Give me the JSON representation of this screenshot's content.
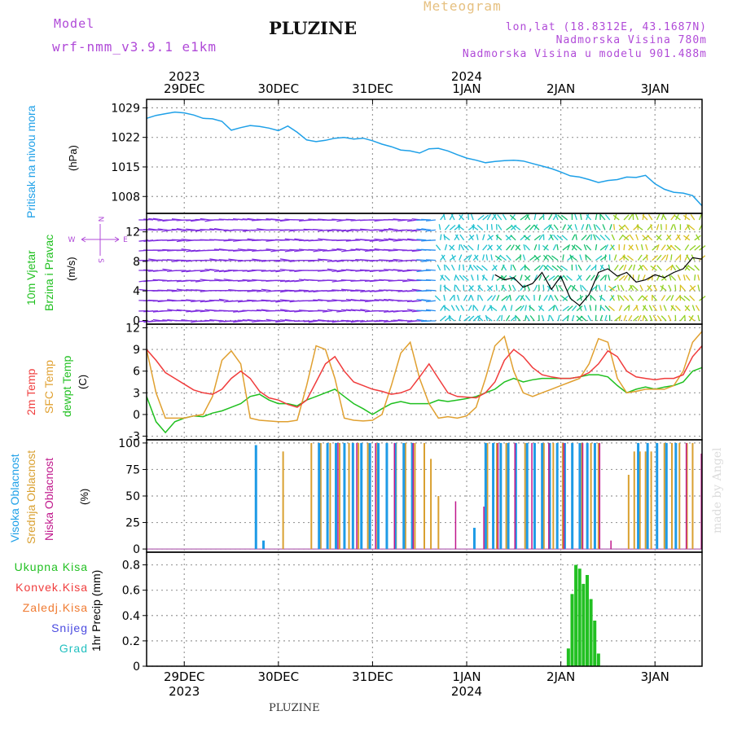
{
  "header": {
    "model_label": "Model",
    "model_value": "wrf-nmm_v3.9.1 e1km",
    "title": "PLUZINE",
    "meteogram": "Meteogram",
    "lonlat": "lon,lat (18.8312E, 43.1687N)",
    "elevation": "Nadmorska Visina 780m",
    "model_elevation": "Nadmorska Visina u modelu 901.488m"
  },
  "footer": {
    "location": "PLUZINE",
    "credit": "made by Angel"
  },
  "colors": {
    "pressure": "#1ea0e8",
    "temp2m": "#f03c3c",
    "sfc_temp": "#e0a030",
    "dewpoint": "#20c020",
    "high_cloud": "#1e9be6",
    "mid_cloud": "#d9a030",
    "low_cloud": "#c0188c",
    "precip": "#22c022",
    "purple_label": "#b04ad8",
    "grid": "#9a9a9a"
  },
  "time_axis": {
    "start_day": 28.6,
    "end_day": 34.5,
    "days": [
      {
        "day": 29,
        "label": "29DEC",
        "year": "2023"
      },
      {
        "day": 30,
        "label": "30DEC",
        "year": ""
      },
      {
        "day": 31,
        "label": "31DEC",
        "year": ""
      },
      {
        "day": 32,
        "label": "1JAN",
        "year": "2024"
      },
      {
        "day": 33,
        "label": "2JAN",
        "year": ""
      },
      {
        "day": 34,
        "label": "3JAN",
        "year": ""
      }
    ]
  },
  "chart_data": [
    {
      "type": "line",
      "panel": "pressure",
      "ylabel_text": "Pritisak na nivou mora",
      "unit": "(hPa)",
      "ylim": [
        1004,
        1031
      ],
      "yticks": [
        1008,
        1015,
        1022,
        1029
      ],
      "series": [
        {
          "name": "Pritisak na nivou mora",
          "x": [
            28.6,
            28.7,
            28.8,
            28.9,
            29.0,
            29.1,
            29.2,
            29.3,
            29.4,
            29.5,
            29.6,
            29.7,
            29.8,
            29.9,
            30.0,
            30.1,
            30.2,
            30.3,
            30.4,
            30.5,
            30.6,
            30.7,
            30.8,
            30.9,
            31.0,
            31.1,
            31.2,
            31.3,
            31.4,
            31.5,
            31.6,
            31.7,
            31.8,
            31.9,
            32.0,
            32.1,
            32.2,
            32.3,
            32.4,
            32.5,
            32.6,
            32.7,
            32.8,
            32.9,
            33.0,
            33.1,
            33.2,
            33.3,
            33.4,
            33.5,
            33.6,
            33.7,
            33.8,
            33.9,
            34.0,
            34.1,
            34.2,
            34.3,
            34.4,
            34.5
          ],
          "values": [
            1026.5,
            1027.2,
            1027.6,
            1028.0,
            1027.8,
            1027.3,
            1026.5,
            1026.4,
            1025.8,
            1023.7,
            1024.3,
            1024.8,
            1024.6,
            1024.2,
            1023.6,
            1024.7,
            1023.2,
            1021.4,
            1021.0,
            1021.3,
            1021.8,
            1022.0,
            1021.6,
            1021.8,
            1021.2,
            1020.4,
            1019.8,
            1019.0,
            1018.8,
            1018.3,
            1019.3,
            1019.4,
            1018.8,
            1017.9,
            1017.1,
            1016.6,
            1016.0,
            1016.3,
            1016.5,
            1016.6,
            1016.4,
            1015.8,
            1015.2,
            1014.6,
            1013.8,
            1012.9,
            1012.6,
            1012.0,
            1011.3,
            1011.8,
            1012.0,
            1012.6,
            1012.5,
            1013.0,
            1011.0,
            1009.7,
            1009.0,
            1008.8,
            1008.2,
            1005.8
          ]
        }
      ]
    },
    {
      "type": "line",
      "panel": "wind",
      "ylabel_text": [
        "10m Vjetar",
        "Brzina i Pravac"
      ],
      "unit": "(m/s)",
      "compass": {
        "n": "N",
        "s": "S",
        "e": "E",
        "w": "W"
      },
      "ylim": [
        -0.5,
        14.5
      ],
      "yticks": [
        0,
        4,
        8,
        12
      ],
      "series": [
        {
          "name": "10m Vjetar",
          "x": [
            32.3,
            32.4,
            32.5,
            32.6,
            32.7,
            32.8,
            32.9,
            33.0,
            33.1,
            33.2,
            33.3,
            33.4,
            33.5,
            33.6,
            33.7,
            33.8,
            33.9,
            34.0,
            34.1,
            34.2,
            34.3,
            34.4,
            34.5
          ],
          "values": [
            6.2,
            5.5,
            5.8,
            4.5,
            5.0,
            6.5,
            4.2,
            6.0,
            3.0,
            2.0,
            3.5,
            6.5,
            7.0,
            6.0,
            6.5,
            5.2,
            5.5,
            6.2,
            5.8,
            6.5,
            7.0,
            8.5,
            8.3
          ]
        }
      ]
    },
    {
      "type": "line",
      "panel": "temperature",
      "ylabel_text": [
        "2m Temp",
        "SFC Temp",
        "dewpt Temp"
      ],
      "unit": "(C)",
      "ylim": [
        -3.5,
        12.5
      ],
      "yticks": [
        -3,
        0,
        3,
        6,
        9,
        12
      ],
      "series": [
        {
          "name": "2m Temp",
          "x": [
            28.6,
            28.7,
            28.8,
            28.9,
            29.0,
            29.1,
            29.2,
            29.3,
            29.4,
            29.5,
            29.6,
            29.7,
            29.8,
            29.9,
            30.0,
            30.1,
            30.2,
            30.3,
            30.4,
            30.5,
            30.6,
            30.7,
            30.8,
            30.9,
            31.0,
            31.1,
            31.2,
            31.3,
            31.4,
            31.5,
            31.6,
            31.7,
            31.8,
            31.9,
            32.0,
            32.1,
            32.2,
            32.3,
            32.4,
            32.5,
            32.6,
            32.7,
            32.8,
            32.9,
            33.0,
            33.1,
            33.2,
            33.3,
            33.4,
            33.5,
            33.6,
            33.7,
            33.8,
            33.9,
            34.0,
            34.1,
            34.2,
            34.3,
            34.4,
            34.5
          ],
          "values": [
            9.0,
            7.5,
            5.8,
            5.0,
            4.2,
            3.4,
            3.0,
            2.8,
            3.5,
            5.0,
            6.0,
            5.0,
            3.2,
            2.3,
            2.0,
            1.4,
            1.0,
            2.0,
            4.5,
            7.0,
            8.0,
            6.0,
            4.5,
            4.0,
            3.5,
            3.2,
            2.8,
            3.0,
            3.5,
            5.2,
            7.0,
            5.0,
            3.0,
            2.5,
            2.4,
            2.3,
            3.0,
            4.5,
            7.5,
            9.0,
            8.0,
            6.5,
            5.5,
            5.2,
            5.0,
            5.0,
            5.2,
            5.8,
            7.0,
            8.8,
            8.0,
            6.0,
            5.2,
            5.0,
            4.8,
            5.0,
            5.0,
            5.5,
            8.0,
            9.5
          ]
        },
        {
          "name": "SFC Temp",
          "x": [
            28.6,
            28.7,
            28.8,
            28.9,
            29.0,
            29.1,
            29.2,
            29.3,
            29.4,
            29.5,
            29.6,
            29.7,
            29.8,
            29.9,
            30.0,
            30.1,
            30.2,
            30.3,
            30.4,
            30.5,
            30.6,
            30.7,
            30.8,
            30.9,
            31.0,
            31.1,
            31.2,
            31.3,
            31.4,
            31.5,
            31.6,
            31.7,
            31.8,
            31.9,
            32.0,
            32.1,
            32.2,
            32.3,
            32.4,
            32.5,
            32.6,
            32.7,
            32.8,
            32.9,
            33.0,
            33.1,
            33.2,
            33.3,
            33.4,
            33.5,
            33.6,
            33.7,
            33.8,
            33.9,
            34.0,
            34.1,
            34.2,
            34.3,
            34.4,
            34.5
          ],
          "values": [
            9.0,
            3.0,
            -0.5,
            -0.5,
            -0.5,
            -0.2,
            0.0,
            2.5,
            7.5,
            8.8,
            7.0,
            -0.5,
            -0.8,
            -0.9,
            -1.0,
            -1.0,
            -0.8,
            4.0,
            9.5,
            9.0,
            5.0,
            -0.5,
            -0.8,
            -0.9,
            -0.8,
            0.0,
            4.0,
            8.5,
            10.0,
            5.0,
            1.5,
            -0.5,
            -0.3,
            -0.5,
            -0.2,
            1.0,
            5.0,
            9.5,
            10.8,
            6.0,
            3.0,
            2.5,
            3.0,
            3.5,
            4.0,
            4.5,
            5.0,
            7.0,
            10.5,
            10.0,
            5.0,
            3.0,
            3.2,
            3.5,
            3.5,
            3.5,
            4.0,
            6.0,
            10.0,
            11.5
          ]
        },
        {
          "name": "dewpt Temp",
          "x": [
            28.6,
            28.7,
            28.8,
            28.9,
            29.0,
            29.1,
            29.2,
            29.3,
            29.4,
            29.5,
            29.6,
            29.7,
            29.8,
            29.9,
            30.0,
            30.1,
            30.2,
            30.3,
            30.4,
            30.5,
            30.6,
            30.7,
            30.8,
            30.9,
            31.0,
            31.1,
            31.2,
            31.3,
            31.4,
            31.5,
            31.6,
            31.7,
            31.8,
            31.9,
            32.0,
            32.1,
            32.2,
            32.3,
            32.4,
            32.5,
            32.6,
            32.7,
            32.8,
            32.9,
            33.0,
            33.1,
            33.2,
            33.3,
            33.4,
            33.5,
            33.6,
            33.7,
            33.8,
            33.9,
            34.0,
            34.1,
            34.2,
            34.3,
            34.4,
            34.5
          ],
          "values": [
            2.5,
            -1.0,
            -2.5,
            -1.0,
            -0.5,
            -0.2,
            -0.3,
            0.2,
            0.5,
            1.0,
            1.5,
            2.5,
            2.8,
            2.0,
            1.5,
            1.5,
            1.2,
            2.0,
            2.5,
            3.0,
            3.5,
            2.5,
            1.5,
            0.8,
            0.0,
            0.8,
            1.5,
            1.8,
            1.5,
            1.5,
            1.5,
            2.0,
            1.8,
            2.0,
            2.2,
            2.5,
            3.0,
            3.5,
            4.5,
            5.0,
            4.5,
            4.8,
            5.0,
            5.0,
            5.0,
            5.0,
            5.2,
            5.5,
            5.5,
            5.2,
            4.0,
            3.0,
            3.5,
            3.8,
            3.5,
            3.8,
            4.0,
            4.5,
            6.0,
            6.5
          ]
        }
      ]
    },
    {
      "type": "bar",
      "panel": "clouds",
      "ylabel_text": [
        "Visoka Oblacnost",
        "Srednja Oblacnost",
        "Niska Oblacnost"
      ],
      "unit": "(%)",
      "ylim": [
        -3,
        103
      ],
      "yticks": [
        0,
        25,
        50,
        75,
        100
      ],
      "high_bars": [
        [
          29.74,
          98
        ],
        [
          29.82,
          8
        ],
        [
          30.41,
          100
        ],
        [
          30.5,
          100
        ],
        [
          30.59,
          100
        ],
        [
          30.68,
          100
        ],
        [
          30.77,
          100
        ],
        [
          30.86,
          100
        ],
        [
          30.95,
          100
        ],
        [
          31.04,
          100
        ],
        [
          31.13,
          100
        ],
        [
          31.22,
          100
        ],
        [
          31.31,
          100
        ],
        [
          31.4,
          100
        ],
        [
          32.06,
          20
        ],
        [
          32.18,
          100
        ],
        [
          32.26,
          100
        ],
        [
          32.34,
          100
        ],
        [
          32.42,
          100
        ],
        [
          32.5,
          100
        ],
        [
          32.62,
          100
        ],
        [
          32.7,
          100
        ],
        [
          32.78,
          100
        ],
        [
          32.86,
          100
        ],
        [
          32.94,
          100
        ],
        [
          33.02,
          100
        ],
        [
          33.1,
          100
        ],
        [
          33.18,
          100
        ],
        [
          33.26,
          100
        ],
        [
          33.34,
          100
        ],
        [
          33.8,
          100
        ],
        [
          33.9,
          100
        ],
        [
          34.0,
          100
        ],
        [
          34.1,
          100
        ],
        [
          34.2,
          100
        ]
      ],
      "mid_bars": [
        [
          30.05,
          92
        ],
        [
          30.35,
          100
        ],
        [
          30.45,
          100
        ],
        [
          30.55,
          100
        ],
        [
          30.65,
          100
        ],
        [
          30.75,
          100
        ],
        [
          30.85,
          100
        ],
        [
          30.95,
          100
        ],
        [
          31.05,
          100
        ],
        [
          31.15,
          100
        ],
        [
          31.25,
          100
        ],
        [
          31.35,
          100
        ],
        [
          31.45,
          100
        ],
        [
          31.55,
          100
        ],
        [
          31.62,
          85
        ],
        [
          31.7,
          50
        ],
        [
          32.22,
          100
        ],
        [
          32.32,
          100
        ],
        [
          32.42,
          100
        ],
        [
          32.52,
          100
        ],
        [
          32.62,
          100
        ],
        [
          32.72,
          100
        ],
        [
          32.82,
          100
        ],
        [
          32.92,
          100
        ],
        [
          33.02,
          100
        ],
        [
          33.12,
          100
        ],
        [
          33.22,
          100
        ],
        [
          33.32,
          100
        ],
        [
          33.4,
          100
        ],
        [
          33.72,
          70
        ],
        [
          33.78,
          92
        ],
        [
          33.84,
          92
        ],
        [
          33.9,
          92
        ],
        [
          33.96,
          92
        ],
        [
          34.02,
          95
        ],
        [
          34.1,
          100
        ],
        [
          34.18,
          100
        ],
        [
          34.26,
          100
        ],
        [
          34.34,
          100
        ],
        [
          34.4,
          100
        ]
      ],
      "low_bars": [
        [
          30.6,
          100
        ],
        [
          30.8,
          100
        ],
        [
          31.0,
          100
        ],
        [
          31.2,
          100
        ],
        [
          31.4,
          100
        ],
        [
          31.85,
          45
        ],
        [
          32.15,
          40
        ],
        [
          32.3,
          100
        ],
        [
          32.48,
          100
        ],
        [
          32.66,
          100
        ],
        [
          32.84,
          100
        ],
        [
          33.0,
          100
        ],
        [
          33.2,
          100
        ],
        [
          33.38,
          100
        ],
        [
          33.5,
          8
        ],
        [
          34.3,
          100
        ],
        [
          34.46,
          90
        ]
      ]
    },
    {
      "type": "bar",
      "panel": "precipitation",
      "ylabel_text": "1hr Precip (mm)",
      "legend": [
        "Ukupna Kisa",
        "Konvek.Kisa",
        "Zaledj.Kisa",
        "Snijeg",
        "Grad"
      ],
      "legend_colors": [
        "#22c022",
        "#f03c3c",
        "#f07a30",
        "#4a4ae0",
        "#22c0c0"
      ],
      "ylim": [
        0,
        0.9
      ],
      "yticks": [
        0,
        0.2,
        0.4,
        0.6,
        0.8
      ],
      "ytick_labels": [
        "0",
        "0.2",
        "0.4",
        "0.6",
        "0.8"
      ],
      "x": [
        33.08,
        33.12,
        33.16,
        33.2,
        33.24,
        33.28,
        33.32,
        33.36,
        33.4
      ],
      "values": [
        0.14,
        0.57,
        0.8,
        0.77,
        0.65,
        0.72,
        0.53,
        0.36,
        0.1
      ]
    }
  ]
}
